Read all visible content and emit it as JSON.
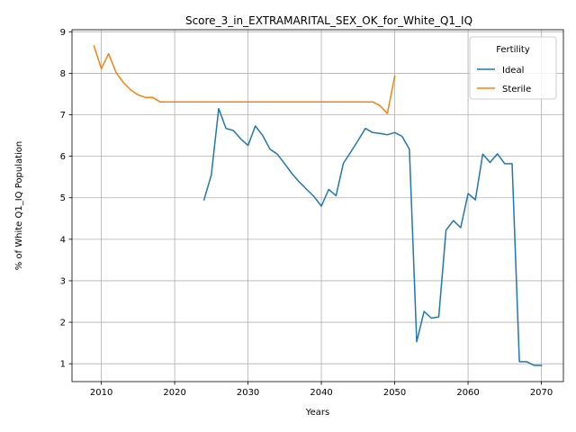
{
  "chart_data": {
    "type": "line",
    "title": "Score_3_in_EXTRAMARITAL_SEX_OK_for_White_Q1_IQ",
    "xlabel": "Years",
    "ylabel": "% of White Q1_IQ Population",
    "xlim": [
      2006,
      2073
    ],
    "ylim": [
      0.57,
      9.05
    ],
    "xticks": [
      2010,
      2020,
      2030,
      2040,
      2050,
      2060,
      2070
    ],
    "yticks": [
      1,
      2,
      3,
      4,
      5,
      6,
      7,
      8,
      9
    ],
    "grid": true,
    "legend": {
      "title": "Fertility",
      "position": "top-right"
    },
    "series": [
      {
        "name": "Ideal",
        "color": "#1f77b4",
        "x": [
          2024,
          2025,
          2026,
          2027,
          2028,
          2029,
          2030,
          2031,
          2032,
          2033,
          2034,
          2035,
          2036,
          2037,
          2038,
          2039,
          2040,
          2041,
          2042,
          2043,
          2044,
          2045,
          2046,
          2047,
          2048,
          2049,
          2050,
          2051,
          2052,
          2053,
          2054,
          2055,
          2056,
          2057,
          2058,
          2059,
          2060,
          2061,
          2062,
          2063,
          2064,
          2065,
          2066,
          2067,
          2068,
          2069,
          2070
        ],
        "y": [
          4.95,
          5.55,
          7.15,
          6.67,
          6.62,
          6.42,
          6.26,
          6.73,
          6.5,
          6.17,
          6.05,
          5.82,
          5.58,
          5.38,
          5.2,
          5.03,
          4.8,
          5.2,
          5.05,
          5.83,
          6.1,
          6.38,
          6.67,
          6.57,
          6.55,
          6.52,
          6.57,
          6.48,
          6.17,
          1.53,
          2.26,
          2.1,
          2.13,
          4.22,
          4.45,
          4.28,
          5.1,
          4.95,
          6.05,
          5.85,
          6.06,
          5.82,
          5.82,
          1.05,
          1.05,
          0.96,
          0.96
        ]
      },
      {
        "name": "Sterile",
        "color": "#ff7f0e",
        "x": [
          2009,
          2010,
          2011,
          2012,
          2013,
          2014,
          2015,
          2016,
          2017,
          2018,
          2019,
          2020,
          2025,
          2030,
          2035,
          2040,
          2045,
          2047,
          2048,
          2049,
          2050
        ],
        "y": [
          8.66,
          8.11,
          8.47,
          8.02,
          7.78,
          7.6,
          7.48,
          7.42,
          7.42,
          7.31,
          7.31,
          7.31,
          7.31,
          7.31,
          7.31,
          7.31,
          7.31,
          7.31,
          7.22,
          7.03,
          7.93
        ]
      }
    ]
  }
}
